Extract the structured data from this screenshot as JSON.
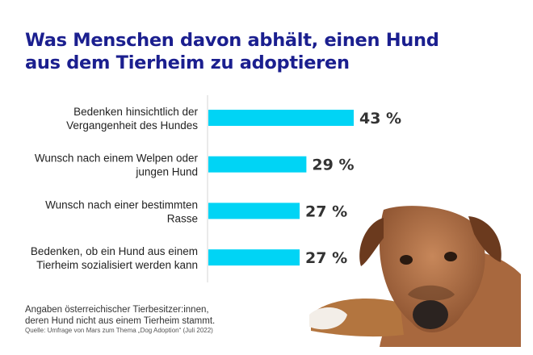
{
  "title_line1": "Was Menschen davon abhält, einen Hund",
  "title_line2": "aus dem Tierheim zu adoptieren",
  "note_line1": "Angaben österreichischer Tierbesitzer:innen,",
  "note_line2": "deren Hund nicht aus einem Tierheim stammt.",
  "source": "Quelle: Umfrage von Mars zum Thema „Dog Adoption“ (Juli 2022)",
  "chart_data": {
    "type": "bar",
    "orientation": "horizontal",
    "categories": [
      [
        "Bedenken hinsichtlich der",
        "Vergangenheit des Hundes"
      ],
      [
        "Wunsch nach einem Welpen oder",
        "jungen Hund"
      ],
      [
        "Wunsch nach einer bestimmten",
        "Rasse"
      ],
      [
        "Bedenken, ob ein Hund aus einem",
        "Tierheim sozialisiert werden kann"
      ]
    ],
    "values": [
      43,
      29,
      27,
      27
    ],
    "value_labels": [
      "43 %",
      "29 %",
      "27 %",
      "27 %"
    ],
    "unit": "%",
    "bar_color": "#00d4f5",
    "grid": false
  },
  "colors": {
    "title": "#1b1f8f",
    "bar": "#00d4f5"
  },
  "image": "dog-lying-down"
}
